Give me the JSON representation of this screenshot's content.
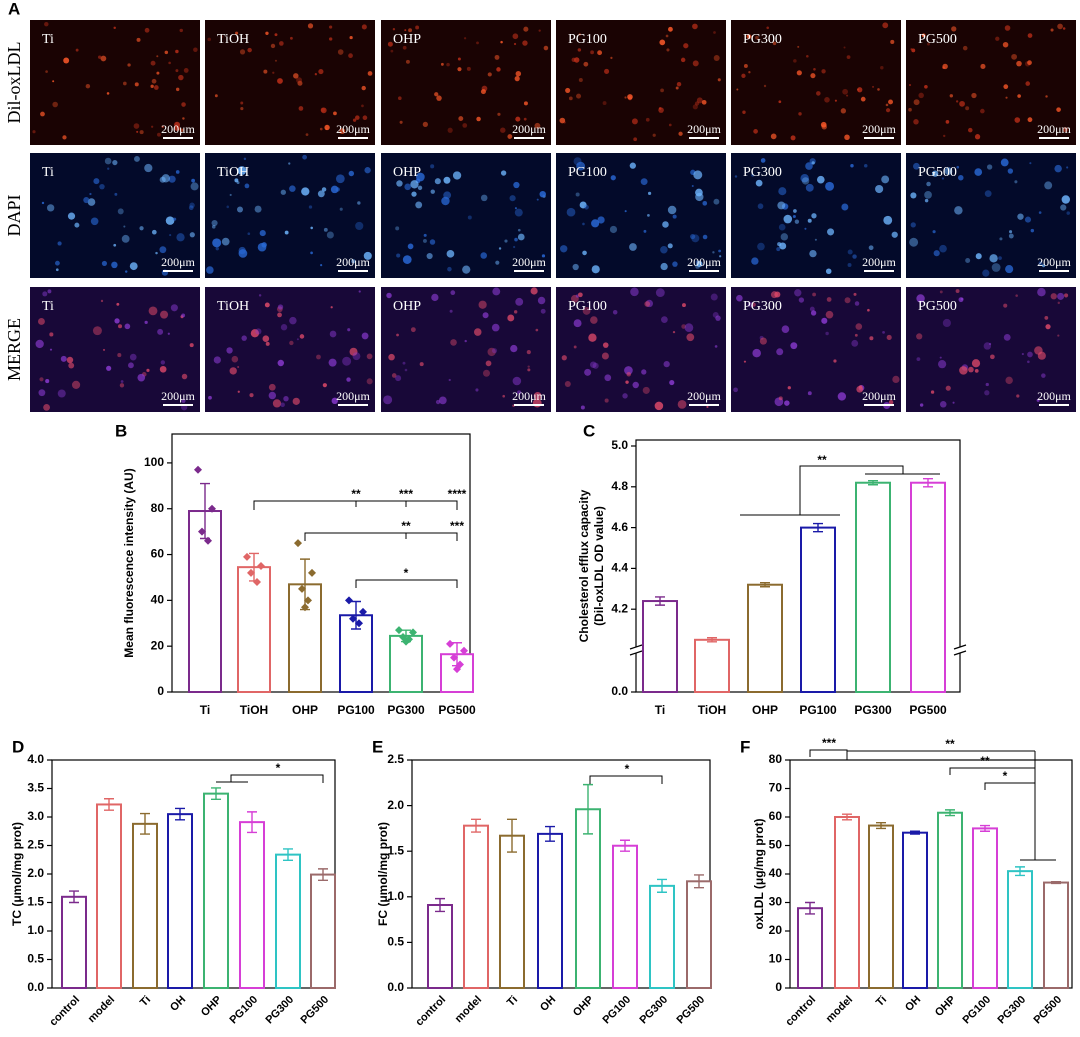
{
  "panel_a": {
    "label": "A",
    "rows": [
      "Dil-oxLDL",
      "DAPI",
      "MERGE"
    ],
    "columns": [
      "Ti",
      "TiOH",
      "OHP",
      "PG100",
      "PG300",
      "PG500"
    ],
    "scale_bar": "200μm"
  },
  "chart_data": [
    {
      "type": "bar",
      "panel": "B",
      "ylabel": "Mean fluorescence intensity (AU)",
      "categories": [
        "Ti",
        "TiOH",
        "OHP",
        "PG100",
        "PG300",
        "PG500"
      ],
      "values": [
        79,
        54.5,
        47,
        33.5,
        24.5,
        16.5
      ],
      "errors": [
        12,
        6,
        11,
        6,
        2.5,
        5
      ],
      "points": [
        [
          97,
          80,
          70,
          66
        ],
        [
          59,
          55,
          52,
          48
        ],
        [
          65,
          52,
          45,
          40,
          37
        ],
        [
          40,
          35,
          32,
          30
        ],
        [
          27,
          26,
          24,
          23,
          22
        ],
        [
          21,
          18,
          15,
          12,
          10
        ]
      ],
      "colors": [
        "#7b2a8c",
        "#e06666",
        "#8b6b2f",
        "#1a1aa8",
        "#3cb371",
        "#d63fd6"
      ],
      "ylim": [
        0,
        110
      ],
      "yticks": [
        0,
        20,
        40,
        60,
        80,
        100
      ],
      "significance": [
        "**",
        "***",
        "****",
        "**",
        "***",
        "*"
      ]
    },
    {
      "type": "bar",
      "panel": "C",
      "ylabel": [
        "Cholesterol efflux capacity",
        "(Dil-oxLDL OD value)"
      ],
      "categories": [
        "Ti",
        "TiOH",
        "OHP",
        "PG100",
        "PG300",
        "PG500"
      ],
      "values": [
        4.24,
        4.05,
        4.32,
        4.6,
        4.82,
        4.82
      ],
      "errors": [
        0.02,
        0.01,
        0.01,
        0.02,
        0.01,
        0.02
      ],
      "colors": [
        "#7b2a8c",
        "#e06666",
        "#8b6b2f",
        "#1a1aa8",
        "#3cb371",
        "#d63fd6"
      ],
      "ylim": [
        0,
        5.0
      ],
      "ybreak": 4.0,
      "yticks": [
        {
          "value": 0,
          "label": "0.0"
        },
        4.2,
        4.4,
        4.6,
        4.8,
        {
          "value": 5,
          "label": "5.0"
        }
      ],
      "significance": [
        "**"
      ]
    },
    {
      "type": "bar",
      "panel": "D",
      "ylabel": "TC (μmol/mg prot)",
      "categories": [
        "control",
        "model",
        "Ti",
        "OH",
        "OHP",
        "PG100",
        "PG300",
        "PG500"
      ],
      "values": [
        1.6,
        3.22,
        2.88,
        3.05,
        3.41,
        2.91,
        2.34,
        1.99
      ],
      "errors": [
        0.1,
        0.1,
        0.18,
        0.1,
        0.1,
        0.18,
        0.1,
        0.1
      ],
      "colors": [
        "#7b2a8c",
        "#e06666",
        "#8b6b2f",
        "#1a1aa8",
        "#3cb371",
        "#d63fd6",
        "#2ec4c4",
        "#9b6a6a"
      ],
      "ylim": [
        0,
        4.0
      ],
      "yticks": [
        {
          "value": 0,
          "label": "0.0"
        },
        0.5,
        {
          "value": 1,
          "label": "1.0"
        },
        1.5,
        {
          "value": 2,
          "label": "2.0"
        },
        2.5,
        {
          "value": 3,
          "label": "3.0"
        },
        3.5,
        {
          "value": 4,
          "label": "4.0"
        }
      ],
      "significance": [
        "*"
      ]
    },
    {
      "type": "bar",
      "panel": "E",
      "ylabel": "FC (μmol/mg prot)",
      "categories": [
        "control",
        "model",
        "Ti",
        "OH",
        "OHP",
        "PG100",
        "PG300",
        "PG500"
      ],
      "values": [
        0.91,
        1.78,
        1.67,
        1.69,
        1.96,
        1.56,
        1.12,
        1.17
      ],
      "errors": [
        0.07,
        0.07,
        0.18,
        0.08,
        0.27,
        0.06,
        0.07,
        0.07
      ],
      "colors": [
        "#7b2a8c",
        "#e06666",
        "#8b6b2f",
        "#1a1aa8",
        "#3cb371",
        "#d63fd6",
        "#2ec4c4",
        "#9b6a6a"
      ],
      "ylim": [
        0,
        2.5
      ],
      "yticks": [
        {
          "value": 0,
          "label": "0.0"
        },
        0.5,
        {
          "value": 1,
          "label": "1.0"
        },
        1.5,
        {
          "value": 2,
          "label": "2.0"
        },
        2.5
      ],
      "significance": [
        "*"
      ]
    },
    {
      "type": "bar",
      "panel": "F",
      "ylabel": "oxLDL (μg/mg prot)",
      "categories": [
        "control",
        "model",
        "Ti",
        "OH",
        "OHP",
        "PG100",
        "PG300",
        "PG500"
      ],
      "values": [
        28,
        60,
        57,
        54.5,
        61.5,
        56,
        41,
        37
      ],
      "errors": [
        2,
        1,
        1,
        0.5,
        1,
        1,
        1.5,
        0.3
      ],
      "colors": [
        "#7b2a8c",
        "#e06666",
        "#8b6b2f",
        "#1a1aa8",
        "#3cb371",
        "#d63fd6",
        "#2ec4c4",
        "#9b6a6a"
      ],
      "ylim": [
        0,
        80
      ],
      "yticks": [
        0,
        10,
        20,
        30,
        40,
        50,
        60,
        70,
        80
      ],
      "significance": [
        "***",
        "**",
        "**",
        "*"
      ]
    }
  ]
}
